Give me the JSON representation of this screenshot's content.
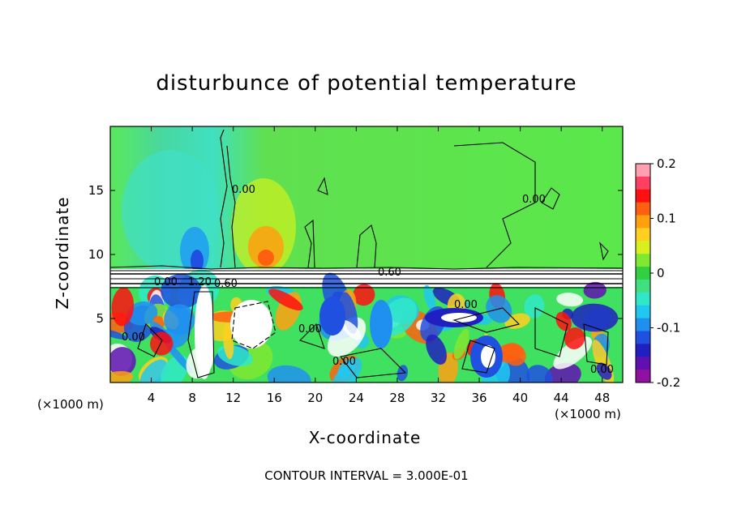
{
  "title": "disturbunce of potential temperature",
  "xlabel": "X-coordinate",
  "ylabel": "Z-coordinate",
  "x_unit": "(×1000 m)",
  "contour_interval": "CONTOUR INTERVAL = 3.000E-01",
  "chart_data": {
    "type": "heatmap",
    "title": "disturbunce of potential temperature",
    "xlabel": "X-coordinate",
    "ylabel": "Z-coordinate",
    "xlim": [
      0,
      50
    ],
    "ylim": [
      0,
      20
    ],
    "x_ticks": [
      "4",
      "8",
      "12",
      "16",
      "20",
      "24",
      "28",
      "32",
      "36",
      "40",
      "44",
      "48"
    ],
    "x_tick_values": [
      4,
      8,
      12,
      16,
      20,
      24,
      28,
      32,
      36,
      40,
      44,
      48
    ],
    "y_ticks": [
      "5",
      "10",
      "15"
    ],
    "y_tick_values": [
      5,
      10,
      15
    ],
    "colorbar": {
      "range": [
        -0.2,
        0.2
      ],
      "ticks": [
        "0.2",
        "0.1",
        "0",
        "-0.1",
        "-0.2"
      ],
      "tick_values": [
        0.2,
        0.1,
        0,
        -0.1,
        -0.2
      ],
      "colors": [
        "#ff9fb0",
        "#ff4060",
        "#ff1010",
        "#ff6010",
        "#ffa010",
        "#ffd020",
        "#d8f020",
        "#80e830",
        "#30d040",
        "#40e080",
        "#30e8c8",
        "#20c8f0",
        "#2090f0",
        "#2050e0",
        "#2020c0",
        "#6010b0",
        "#9010a0"
      ]
    },
    "contour_labels": [
      "0.00",
      "0.00",
      "0.00",
      "0.00",
      "0.00",
      "0.00",
      "0.00",
      "0.00",
      "0.60",
      "1.20",
      "0.60"
    ],
    "contour_interval": 0.3
  }
}
